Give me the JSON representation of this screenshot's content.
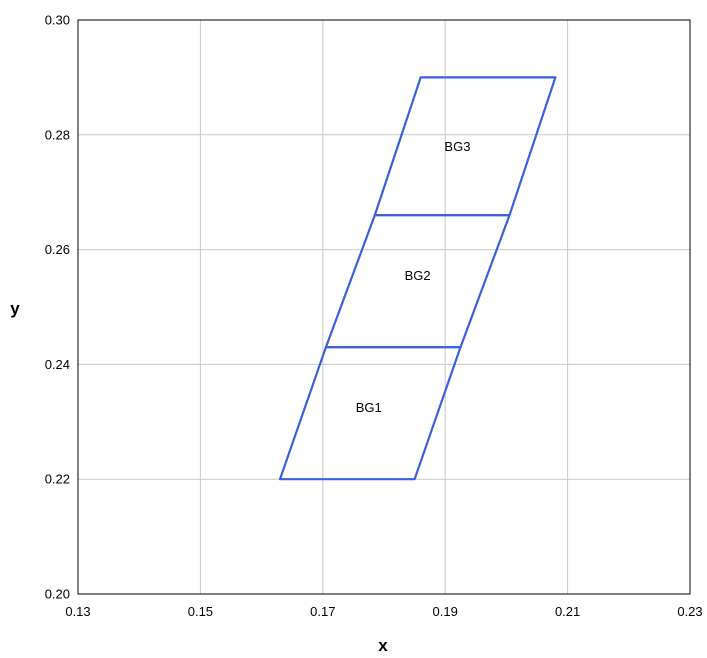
{
  "chart_data": {
    "type": "scatter",
    "title": "",
    "xlabel": "x",
    "ylabel": "y",
    "xlim": [
      0.13,
      0.23
    ],
    "ylim": [
      0.2,
      0.3
    ],
    "xticks": [
      "0.13",
      "0.15",
      "0.17",
      "0.19",
      "0.21",
      "0.23"
    ],
    "yticks": [
      "0.20",
      "0.22",
      "0.24",
      "0.26",
      "0.28",
      "0.30"
    ],
    "grid": true,
    "line_color": "#3a5fdc",
    "regions": [
      {
        "name": "BG1",
        "label_at": [
          0.1775,
          0.2325
        ],
        "vertices": [
          [
            0.163,
            0.22
          ],
          [
            0.185,
            0.22
          ],
          [
            0.1925,
            0.243
          ],
          [
            0.1705,
            0.243
          ]
        ]
      },
      {
        "name": "BG2",
        "label_at": [
          0.1855,
          0.2555
        ],
        "vertices": [
          [
            0.1705,
            0.243
          ],
          [
            0.1925,
            0.243
          ],
          [
            0.2005,
            0.266
          ],
          [
            0.1785,
            0.266
          ]
        ]
      },
      {
        "name": "BG3",
        "label_at": [
          0.192,
          0.278
        ],
        "vertices": [
          [
            0.1785,
            0.266
          ],
          [
            0.2005,
            0.266
          ],
          [
            0.208,
            0.29
          ],
          [
            0.186,
            0.29
          ]
        ]
      }
    ]
  }
}
